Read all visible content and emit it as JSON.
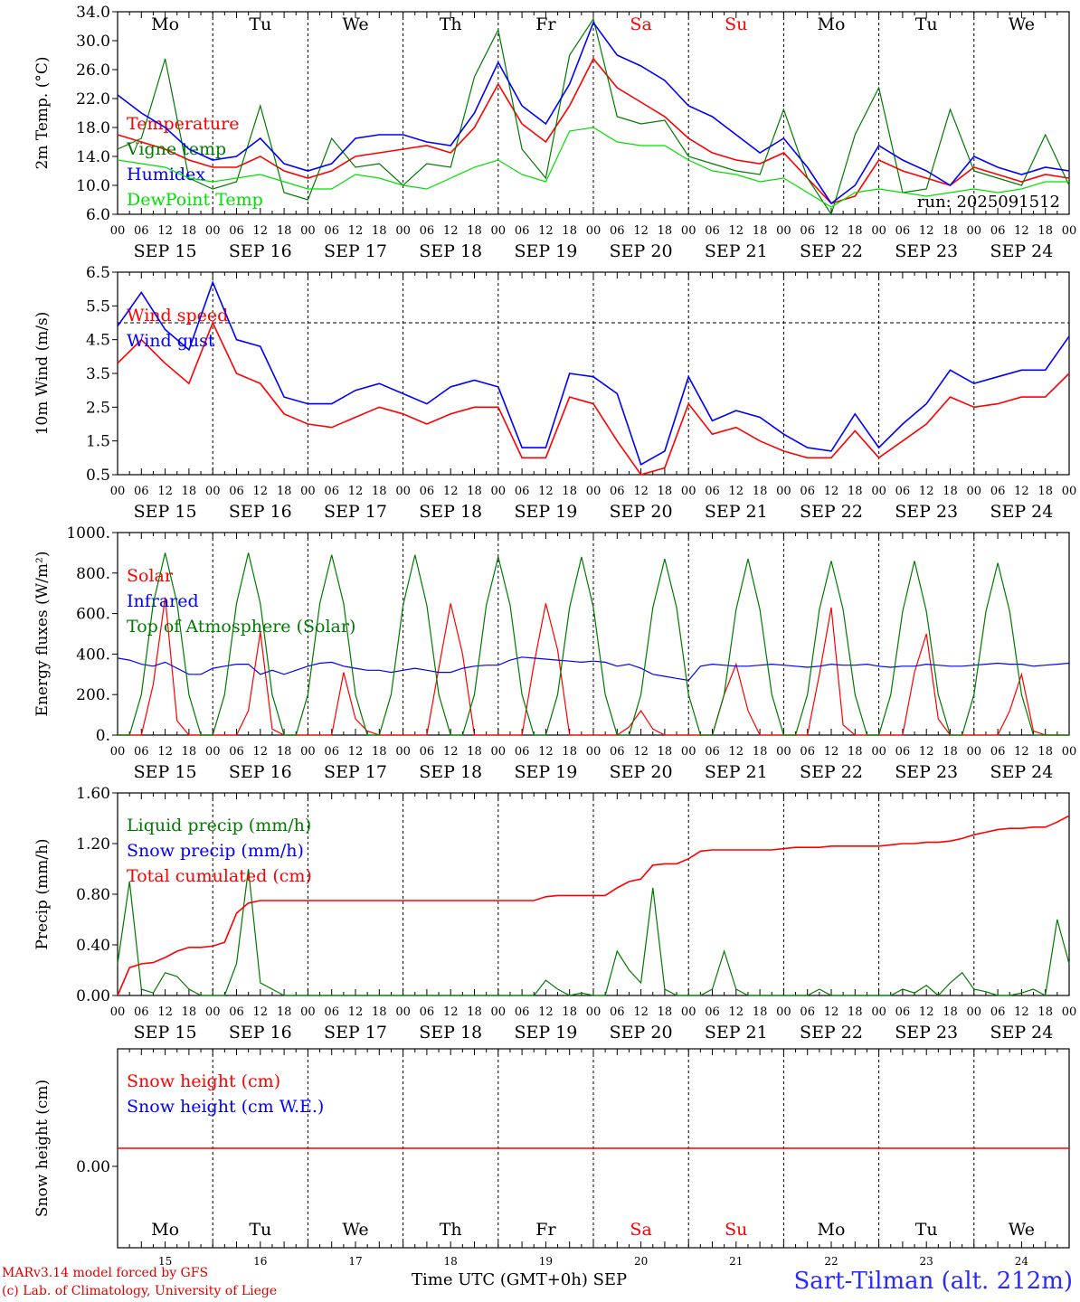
{
  "colors": {
    "red": "#ff0000",
    "blue": "#0000ff",
    "dark_green": "#007a00",
    "light_green": "#00e000",
    "sat_sun": "#ff0000"
  },
  "run_label": "run: 2025091512",
  "days": [
    "Mo",
    "Tu",
    "We",
    "Th",
    "Fr",
    "Sa",
    "Su",
    "Mo",
    "Tu",
    "We"
  ],
  "weekend_days": [
    5,
    6
  ],
  "dates": [
    "SEP 15",
    "SEP 16",
    "SEP 17",
    "SEP 18",
    "SEP 19",
    "SEP 20",
    "SEP 21",
    "SEP 22",
    "SEP 23",
    "SEP 24"
  ],
  "day_numbers": [
    "15",
    "16",
    "17",
    "18",
    "19",
    "20",
    "21",
    "22",
    "23",
    "24"
  ],
  "hour_ticks": [
    "00",
    "06",
    "12",
    "18"
  ],
  "final_tick": "00",
  "footer": {
    "credit_line1": "MARv3.14 model forced by GFS",
    "credit_line2": "(c) Lab. of Climatology, University of Liege",
    "xaxis_title": "Time UTC (GMT+0h) SEP",
    "station": "Sart-Tilman (alt. 212m)"
  },
  "chart_data": [
    {
      "type": "line",
      "ylabel": "2m Temp. (°C)",
      "ylim": [
        6.0,
        34.0
      ],
      "yticks": [
        "6.0",
        "10.0",
        "14.0",
        "18.0",
        "22.0",
        "26.0",
        "30.0",
        "34.0"
      ],
      "x_hours": [
        0,
        6,
        12,
        18,
        24,
        30,
        36,
        42,
        48,
        54,
        60,
        66,
        72,
        78,
        84,
        90,
        96,
        102,
        108,
        114,
        120,
        126,
        132,
        138,
        144,
        150,
        156,
        162,
        168,
        174,
        180,
        186,
        192,
        198,
        204,
        210,
        216,
        222,
        228,
        234,
        240
      ],
      "series": [
        {
          "name": "Temperature",
          "color": "red",
          "values": [
            17.0,
            16.0,
            15.0,
            13.5,
            12.5,
            12.5,
            14.0,
            12.0,
            11.0,
            12.0,
            14.0,
            14.5,
            15.0,
            15.5,
            14.5,
            18.0,
            24.0,
            18.5,
            16.0,
            21.0,
            27.5,
            23.5,
            21.5,
            19.5,
            16.5,
            14.5,
            13.5,
            13.0,
            14.5,
            11.0,
            7.5,
            8.5,
            13.5,
            12.0,
            11.0,
            10.0,
            12.5,
            11.5,
            10.5,
            11.5,
            11.0
          ]
        },
        {
          "name": "Vigne temp",
          "color": "dark_green",
          "values": [
            15.0,
            16.5,
            27.5,
            11.0,
            9.5,
            10.5,
            21.0,
            9.0,
            8.0,
            16.5,
            12.5,
            13.0,
            10.0,
            13.0,
            12.5,
            25.0,
            31.5,
            15.0,
            11.0,
            28.0,
            33.0,
            19.5,
            18.5,
            19.0,
            14.0,
            13.0,
            12.0,
            11.5,
            20.5,
            11.0,
            6.0,
            17.0,
            23.5,
            9.0,
            9.5,
            20.5,
            12.0,
            11.0,
            10.0,
            17.0,
            10.0
          ]
        },
        {
          "name": "Humidex",
          "color": "blue",
          "values": [
            22.5,
            20.0,
            18.0,
            15.0,
            13.5,
            14.0,
            16.5,
            13.0,
            12.0,
            13.0,
            16.5,
            17.0,
            17.0,
            16.0,
            15.5,
            20.0,
            27.0,
            21.0,
            18.5,
            24.0,
            32.5,
            28.0,
            26.5,
            24.5,
            21.0,
            19.5,
            17.0,
            14.5,
            16.5,
            12.5,
            7.5,
            10.0,
            15.5,
            13.5,
            12.0,
            10.0,
            14.0,
            12.5,
            11.5,
            12.5,
            12.0
          ]
        },
        {
          "name": "DewPoint Temp",
          "color": "light_green",
          "values": [
            13.5,
            13.0,
            12.5,
            11.0,
            10.5,
            11.0,
            11.5,
            10.5,
            9.5,
            9.5,
            11.5,
            11.0,
            10.0,
            9.5,
            11.0,
            12.5,
            13.5,
            11.5,
            10.5,
            17.5,
            18.0,
            16.0,
            15.5,
            15.5,
            13.5,
            12.0,
            11.5,
            10.5,
            11.0,
            9.0,
            7.0,
            9.0,
            9.5,
            9.0,
            8.5,
            9.0,
            9.5,
            9.0,
            9.5,
            10.5,
            10.5
          ]
        }
      ]
    },
    {
      "type": "line",
      "ylabel": "10m Wind (m/s)",
      "ylim": [
        0.5,
        6.5
      ],
      "yticks": [
        "0.5",
        "1.5",
        "2.5",
        "3.5",
        "4.5",
        "5.5",
        "6.5"
      ],
      "reference_line": 5.0,
      "x_hours": [
        0,
        6,
        12,
        18,
        24,
        30,
        36,
        42,
        48,
        54,
        60,
        66,
        72,
        78,
        84,
        90,
        96,
        102,
        108,
        114,
        120,
        126,
        132,
        138,
        144,
        150,
        156,
        162,
        168,
        174,
        180,
        186,
        192,
        198,
        204,
        210,
        216,
        222,
        228,
        234,
        240
      ],
      "series": [
        {
          "name": "Wind speed",
          "color": "red",
          "values": [
            3.8,
            4.5,
            3.8,
            3.2,
            5.0,
            3.5,
            3.2,
            2.3,
            2.0,
            1.9,
            2.2,
            2.5,
            2.3,
            2.0,
            2.3,
            2.5,
            2.5,
            1.0,
            1.0,
            2.8,
            2.6,
            1.5,
            0.5,
            0.7,
            2.6,
            1.7,
            1.9,
            1.5,
            1.2,
            1.0,
            1.0,
            1.8,
            1.0,
            1.5,
            2.0,
            2.8,
            2.5,
            2.6,
            2.8,
            2.8,
            3.5
          ]
        },
        {
          "name": "Wind gust",
          "color": "blue",
          "values": [
            4.9,
            5.9,
            4.8,
            4.2,
            6.2,
            4.5,
            4.3,
            2.8,
            2.6,
            2.6,
            3.0,
            3.2,
            2.9,
            2.6,
            3.1,
            3.3,
            3.1,
            1.3,
            1.3,
            3.5,
            3.4,
            2.9,
            0.8,
            1.2,
            3.4,
            2.1,
            2.4,
            2.2,
            1.7,
            1.3,
            1.2,
            2.3,
            1.3,
            2.0,
            2.6,
            3.6,
            3.2,
            3.4,
            3.6,
            3.6,
            4.6
          ]
        }
      ]
    },
    {
      "type": "line",
      "ylabel": "Energy fluxes (W/m²)",
      "ylim": [
        0,
        1000
      ],
      "yticks": [
        "0.",
        "200.",
        "400.",
        "600.",
        "800.",
        "1000."
      ],
      "x_hours": [
        0,
        3,
        6,
        9,
        12,
        15,
        18,
        21,
        24,
        27,
        30,
        33,
        36,
        39,
        42,
        45,
        48,
        51,
        54,
        57,
        60,
        63,
        66,
        69,
        72,
        75,
        78,
        81,
        84,
        87,
        90,
        93,
        96,
        99,
        102,
        105,
        108,
        111,
        114,
        117,
        120,
        123,
        126,
        129,
        132,
        135,
        138,
        141,
        144,
        147,
        150,
        153,
        156,
        159,
        162,
        165,
        168,
        171,
        174,
        177,
        180,
        183,
        186,
        189,
        192,
        195,
        198,
        201,
        204,
        207,
        210,
        213,
        216,
        219,
        222,
        225,
        228,
        231,
        234,
        237,
        240
      ],
      "series": [
        {
          "name": "Solar",
          "color": "red",
          "values": [
            0,
            0,
            0,
            250,
            680,
            70,
            0,
            0,
            0,
            0,
            0,
            120,
            510,
            30,
            0,
            0,
            0,
            0,
            0,
            310,
            80,
            20,
            0,
            0,
            0,
            0,
            0,
            330,
            650,
            400,
            0,
            0,
            0,
            0,
            0,
            350,
            650,
            420,
            0,
            0,
            0,
            0,
            0,
            40,
            120,
            30,
            0,
            0,
            0,
            0,
            0,
            200,
            350,
            120,
            0,
            0,
            0,
            0,
            0,
            300,
            630,
            50,
            0,
            0,
            0,
            0,
            0,
            310,
            500,
            80,
            0,
            0,
            0,
            0,
            0,
            120,
            300,
            20,
            0,
            0,
            0
          ]
        },
        {
          "name": "Infrared",
          "color": "blue",
          "values": [
            380,
            370,
            350,
            340,
            360,
            330,
            300,
            300,
            330,
            340,
            350,
            350,
            300,
            320,
            300,
            320,
            340,
            355,
            360,
            340,
            330,
            320,
            320,
            310,
            320,
            330,
            320,
            310,
            310,
            330,
            340,
            345,
            345,
            370,
            385,
            380,
            375,
            370,
            365,
            360,
            365,
            360,
            340,
            350,
            330,
            300,
            290,
            280,
            270,
            340,
            350,
            345,
            340,
            340,
            345,
            350,
            345,
            340,
            335,
            340,
            350,
            345,
            345,
            350,
            340,
            335,
            340,
            340,
            350,
            345,
            340,
            340,
            345,
            350,
            355,
            350,
            350,
            340,
            345,
            350,
            355
          ]
        },
        {
          "name": "Top of Atmosphere (Solar)",
          "color": "dark_green",
          "values": [
            0,
            0,
            200,
            650,
            900,
            650,
            200,
            0,
            0,
            200,
            650,
            900,
            650,
            200,
            0,
            0,
            200,
            650,
            890,
            650,
            200,
            0,
            0,
            200,
            640,
            890,
            640,
            200,
            0,
            0,
            200,
            640,
            880,
            640,
            200,
            0,
            0,
            200,
            630,
            880,
            630,
            200,
            0,
            0,
            200,
            630,
            870,
            630,
            200,
            0,
            0,
            200,
            620,
            870,
            620,
            200,
            0,
            0,
            200,
            620,
            860,
            620,
            200,
            0,
            0,
            200,
            610,
            860,
            610,
            200,
            0,
            0,
            200,
            610,
            850,
            610,
            200,
            0,
            0,
            0,
            0
          ]
        }
      ]
    },
    {
      "type": "line",
      "ylabel": "Precip (mm/h)",
      "ylim": [
        0,
        1.6
      ],
      "yticks": [
        "0.00",
        "0.40",
        "0.80",
        "1.20",
        "1.60"
      ],
      "x_hours": [
        0,
        3,
        6,
        9,
        12,
        15,
        18,
        21,
        24,
        27,
        30,
        33,
        36,
        39,
        42,
        45,
        48,
        51,
        54,
        57,
        60,
        63,
        66,
        69,
        72,
        75,
        78,
        81,
        84,
        87,
        90,
        93,
        96,
        99,
        102,
        105,
        108,
        111,
        114,
        117,
        120,
        123,
        126,
        129,
        132,
        135,
        138,
        141,
        144,
        147,
        150,
        153,
        156,
        159,
        162,
        165,
        168,
        171,
        174,
        177,
        180,
        183,
        186,
        189,
        192,
        195,
        198,
        201,
        204,
        207,
        210,
        213,
        216,
        219,
        222,
        225,
        228,
        231,
        234,
        237,
        240
      ],
      "series": [
        {
          "name": "Liquid precip (mm/h)",
          "color": "dark_green",
          "values": [
            0.25,
            0.9,
            0.05,
            0.02,
            0.18,
            0.15,
            0.05,
            0.0,
            0.0,
            0.0,
            0.25,
            1.0,
            0.1,
            0.05,
            0.0,
            0.0,
            0.0,
            0.0,
            0.0,
            0.0,
            0.0,
            0.0,
            0.0,
            0.0,
            0.0,
            0.0,
            0.0,
            0.0,
            0.0,
            0.0,
            0.0,
            0.0,
            0.0,
            0.0,
            0.0,
            0.0,
            0.12,
            0.05,
            0.0,
            0.02,
            0.0,
            0.0,
            0.35,
            0.2,
            0.1,
            0.85,
            0.05,
            0.0,
            0.0,
            0.0,
            0.05,
            0.35,
            0.05,
            0.0,
            0.0,
            0.0,
            0.0,
            0.0,
            0.0,
            0.05,
            0.0,
            0.0,
            0.0,
            0.0,
            0.0,
            0.0,
            0.05,
            0.02,
            0.08,
            0.0,
            0.1,
            0.18,
            0.05,
            0.03,
            0.0,
            0.0,
            0.02,
            0.05,
            0.0,
            0.6,
            0.25
          ]
        },
        {
          "name": "Snow precip (mm/h)",
          "color": "blue",
          "values": []
        },
        {
          "name": "Total cumulated (cm)",
          "color": "red",
          "values": [
            0.0,
            0.22,
            0.25,
            0.26,
            0.3,
            0.35,
            0.38,
            0.38,
            0.39,
            0.42,
            0.65,
            0.73,
            0.75,
            0.75,
            0.75,
            0.75,
            0.75,
            0.75,
            0.75,
            0.75,
            0.75,
            0.75,
            0.75,
            0.75,
            0.75,
            0.75,
            0.75,
            0.75,
            0.75,
            0.75,
            0.75,
            0.75,
            0.75,
            0.75,
            0.75,
            0.75,
            0.78,
            0.79,
            0.79,
            0.79,
            0.79,
            0.79,
            0.85,
            0.9,
            0.92,
            1.03,
            1.04,
            1.04,
            1.08,
            1.14,
            1.15,
            1.15,
            1.15,
            1.15,
            1.15,
            1.15,
            1.16,
            1.17,
            1.17,
            1.17,
            1.18,
            1.18,
            1.18,
            1.18,
            1.18,
            1.19,
            1.2,
            1.2,
            1.21,
            1.21,
            1.22,
            1.24,
            1.27,
            1.29,
            1.31,
            1.32,
            1.32,
            1.33,
            1.33,
            1.37,
            1.42
          ]
        }
      ]
    },
    {
      "type": "line",
      "ylabel": "Snow height (cm)",
      "ylim": [
        -1,
        1
      ],
      "yticks": [
        "0.00"
      ],
      "x_hours": [
        0,
        240
      ],
      "series": [
        {
          "name": "Snow height (cm)",
          "color": "red",
          "values": [
            0.0,
            0.0
          ]
        },
        {
          "name": "Snow height (cm W.E.)",
          "color": "blue",
          "values": []
        }
      ]
    }
  ]
}
